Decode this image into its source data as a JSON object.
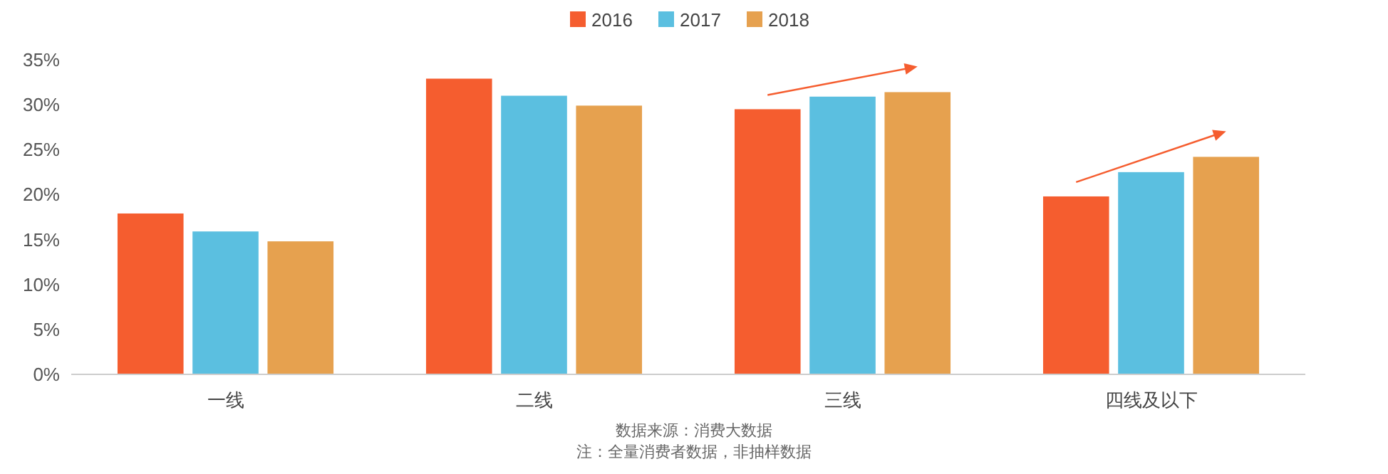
{
  "chart_data": {
    "type": "bar",
    "categories": [
      "一线",
      "二线",
      "三线",
      "四线及以下"
    ],
    "series": [
      {
        "name": "2016",
        "color": "#f55d2f",
        "values": [
          17.9,
          32.9,
          29.5,
          19.8
        ]
      },
      {
        "name": "2017",
        "color": "#5bbfe0",
        "values": [
          15.9,
          31.0,
          30.9,
          22.5
        ]
      },
      {
        "name": "2018",
        "color": "#e6a14f",
        "values": [
          14.8,
          29.9,
          31.4,
          24.2
        ]
      }
    ],
    "ylim": [
      0,
      35
    ],
    "yticks": [
      {
        "value": 0,
        "label": "0%"
      },
      {
        "value": 5,
        "label": "5%"
      },
      {
        "value": 10,
        "label": "10%"
      },
      {
        "value": 15,
        "label": "15%"
      },
      {
        "value": 20,
        "label": "20%"
      },
      {
        "value": 25,
        "label": "25%"
      },
      {
        "value": 30,
        "label": "30%"
      },
      {
        "value": 35,
        "label": "35%"
      }
    ],
    "grid": false,
    "legend": "top",
    "annotations": [
      "数据来源：消费大数据",
      "注：全量消费者数据，非抽样数据"
    ]
  }
}
